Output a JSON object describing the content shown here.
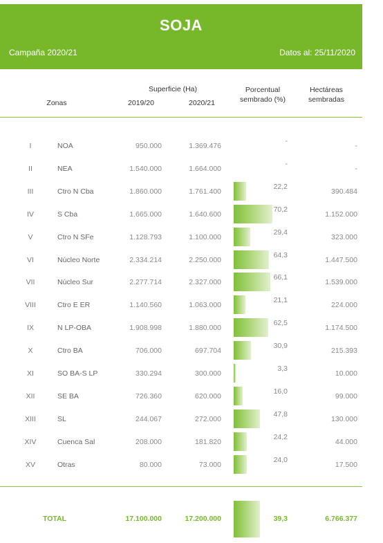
{
  "header": {
    "title": "SOJA",
    "campaign": "Campaña 2020/21",
    "date": "Datos al: 25/11/2020"
  },
  "columns": {
    "zonas": "Zonas",
    "superficie": "Superficie (Ha)",
    "y2019": "2019/20",
    "y2020": "2020/21",
    "porcentual_1": "Porcentual",
    "porcentual_2": "sembrado (%)",
    "hectareas_1": "Hectáreas",
    "hectareas_2": "sembradas"
  },
  "colors": {
    "accent": "#77b82a",
    "header_bg": "#77b82a"
  },
  "rows": [
    {
      "num": "I",
      "zona": "NOA",
      "s19": "950.000",
      "s20": "1.369.476",
      "pct": "-",
      "pct_value": 0,
      "hect": "-"
    },
    {
      "num": "II",
      "zona": "NEA",
      "s19": "1.540.000",
      "s20": "1.664.000",
      "pct": "-",
      "pct_value": 0,
      "hect": "-"
    },
    {
      "num": "III",
      "zona": "Ctro N Cba",
      "s19": "1.860.000",
      "s20": "1.761.400",
      "pct": "22,2",
      "pct_value": 22.2,
      "hect": "390.484"
    },
    {
      "num": "IV",
      "zona": "S Cba",
      "s19": "1.665.000",
      "s20": "1.640.600",
      "pct": "70,2",
      "pct_value": 70.2,
      "hect": "1.152.000"
    },
    {
      "num": "V",
      "zona": "Ctro N SFe",
      "s19": "1.128.793",
      "s20": "1.100.000",
      "pct": "29,4",
      "pct_value": 29.4,
      "hect": "323.000"
    },
    {
      "num": "VI",
      "zona": "Núcleo Norte",
      "s19": "2.334.214",
      "s20": "2.250.000",
      "pct": "64,3",
      "pct_value": 64.3,
      "hect": "1.447.500"
    },
    {
      "num": "VII",
      "zona": "Núcleo Sur",
      "s19": "2.277.714",
      "s20": "2.327.000",
      "pct": "66,1",
      "pct_value": 66.1,
      "hect": "1.539.000"
    },
    {
      "num": "VIII",
      "zona": "Ctro E ER",
      "s19": "1.140.560",
      "s20": "1.063.000",
      "pct": "21,1",
      "pct_value": 21.1,
      "hect": "224.000"
    },
    {
      "num": "IX",
      "zona": "N LP-OBA",
      "s19": "1.908.998",
      "s20": "1.880.000",
      "pct": "62,5",
      "pct_value": 62.5,
      "hect": "1.174.500"
    },
    {
      "num": "X",
      "zona": "Ctro BA",
      "s19": "706.000",
      "s20": "697.704",
      "pct": "30,9",
      "pct_value": 30.9,
      "hect": "215.393"
    },
    {
      "num": "XI",
      "zona": "SO BA-S LP",
      "s19": "330.294",
      "s20": "300.000",
      "pct": "3,3",
      "pct_value": 3.3,
      "hect": "10.000"
    },
    {
      "num": "XII",
      "zona": "SE BA",
      "s19": "726.360",
      "s20": "620.000",
      "pct": "16,0",
      "pct_value": 16.0,
      "hect": "99.000"
    },
    {
      "num": "XIII",
      "zona": "SL",
      "s19": "244.067",
      "s20": "272.000",
      "pct": "47,8",
      "pct_value": 47.8,
      "hect": "130.000"
    },
    {
      "num": "XIV",
      "zona": "Cuenca Sal",
      "s19": "208.000",
      "s20": "181.820",
      "pct": "24,2",
      "pct_value": 24.2,
      "hect": "44.000"
    },
    {
      "num": "XV",
      "zona": "Otras",
      "s19": "80.000",
      "s20": "73.000",
      "pct": "24,0",
      "pct_value": 24.0,
      "hect": "17.500"
    }
  ],
  "total": {
    "label": "TOTAL",
    "s19": "17.100.000",
    "s20": "17.200.000",
    "pct": "39,3",
    "pct_value": 39.3,
    "hect": "6.766.377"
  }
}
